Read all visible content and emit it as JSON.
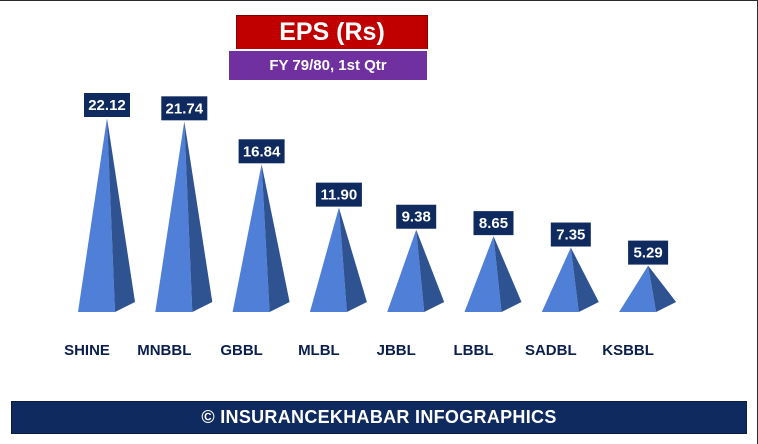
{
  "header": {
    "title": "EPS (Rs)",
    "subtitle": "FY 79/80, 1st Qtr"
  },
  "footer": {
    "text": "© INSURANCEKHABAR INFOGRAPHICS"
  },
  "colors": {
    "pyramid_light": "#4f7fd6",
    "pyramid_dark": "#2e5390",
    "label_bg": "#0e2a5f",
    "title_bg": "#c00000",
    "subtitle_bg": "#7030a0"
  },
  "chart_data": {
    "type": "bar",
    "title": "EPS (Rs)",
    "subtitle": "FY 79/80, 1st Qtr",
    "xlabel": "",
    "ylabel": "",
    "ylim": [
      0,
      22.12
    ],
    "grid": false,
    "legend": "none",
    "categories": [
      "SHINE",
      "MNBBL",
      "GBBL",
      "MLBL",
      "JBBL",
      "LBBL",
      "SADBL",
      "KSBBL"
    ],
    "values": [
      22.12,
      21.74,
      16.84,
      11.9,
      9.38,
      8.65,
      7.35,
      5.29
    ],
    "value_labels": [
      "22.12",
      "21.74",
      "16.84",
      "11.90",
      "9.38",
      "8.65",
      "7.35",
      "5.29"
    ]
  }
}
